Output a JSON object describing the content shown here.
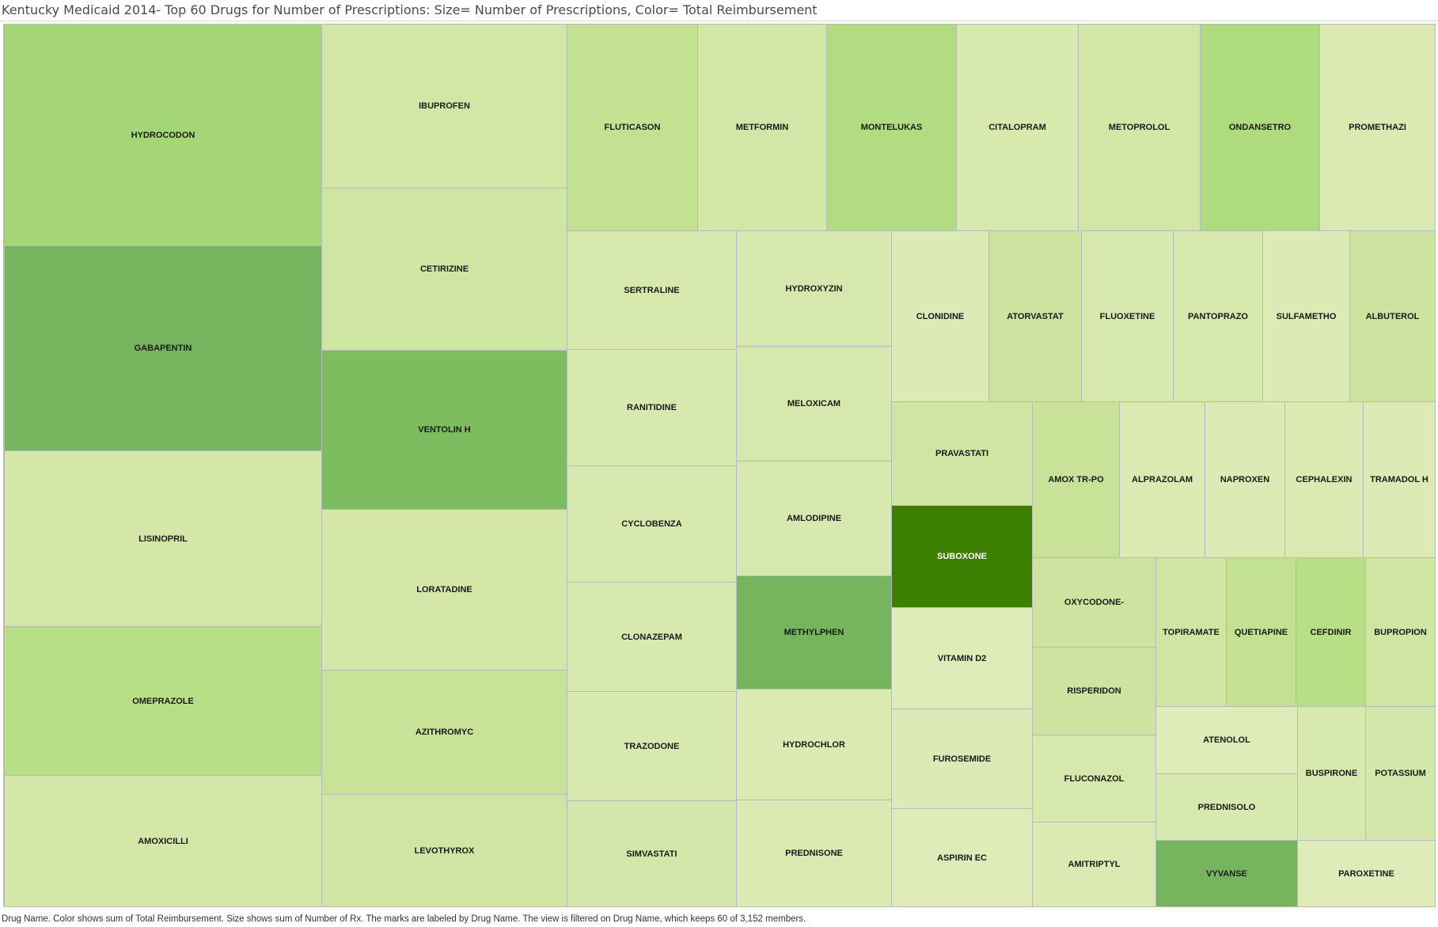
{
  "header": {
    "title": "Kentucky Medicaid 2014- Top 60 Drugs for Number of Prescriptions:  Size= Number of Prescriptions,  Color= Total Reimbursement"
  },
  "footer": {
    "caption": "Drug Name.  Color shows sum of Total Reimbursement.  Size shows sum of Number of Rx.  The marks are labeled by Drug Name. The view is filtered on Drug Name, which keeps 60 of 3,152 members."
  },
  "chart_data": {
    "type": "treemap",
    "title": "Kentucky Medicaid 2014- Top 60 Drugs for Number of Prescriptions:  Size= Number of Prescriptions,  Color= Total Reimbursement",
    "size_measure": "Number of Rx",
    "color_measure": "Total Reimbursement",
    "color_scale": [
      "#dfeab9",
      "#3d7f00"
    ],
    "items": [
      {
        "name": "HYDROCODON",
        "color": "#a4d676"
      },
      {
        "name": "GABAPENTIN",
        "color": "#76b55e"
      },
      {
        "name": "LISINOPRIL",
        "color": "#d4e7a9"
      },
      {
        "name": "OMEPRAZOLE",
        "color": "#b7df86"
      },
      {
        "name": "AMOXICILLI",
        "color": "#d4e7a9"
      },
      {
        "name": "IBUPROFEN",
        "color": "#d2e7a5"
      },
      {
        "name": "CETIRIZINE",
        "color": "#cfe5a2"
      },
      {
        "name": "VENTOLIN H",
        "color": "#7ebc60"
      },
      {
        "name": "LORATADINE",
        "color": "#d4e7a9"
      },
      {
        "name": "AZITHROMYC",
        "color": "#c8e397"
      },
      {
        "name": "LEVOTHYROX",
        "color": "#d0e5a4"
      },
      {
        "name": "FLUTICASON",
        "color": "#c2e191"
      },
      {
        "name": "METFORMIN",
        "color": "#d2e7a7"
      },
      {
        "name": "MONTELUKAS",
        "color": "#b2dc81"
      },
      {
        "name": "CITALOPRAM",
        "color": "#d8e9ae"
      },
      {
        "name": "METOPROLOL",
        "color": "#d2e6a6"
      },
      {
        "name": "ONDANSETRO",
        "color": "#aedb7e"
      },
      {
        "name": "PROMETHAZI",
        "color": "#dbeab3"
      },
      {
        "name": "SERTRALINE",
        "color": "#d6e8ac"
      },
      {
        "name": "RANITIDINE",
        "color": "#d8e9af"
      },
      {
        "name": "CYCLOBENZA",
        "color": "#d8e9af"
      },
      {
        "name": "CLONAZEPAM",
        "color": "#d8e9af"
      },
      {
        "name": "TRAZODONE",
        "color": "#d8e9af"
      },
      {
        "name": "SIMVASTATI",
        "color": "#d4e7aa"
      },
      {
        "name": "HYDROXYZIN",
        "color": "#d6e8ad"
      },
      {
        "name": "MELOXICAM",
        "color": "#d6e8ad"
      },
      {
        "name": "AMLODIPINE",
        "color": "#d8e9af"
      },
      {
        "name": "METHYLPHEN",
        "color": "#76b55e"
      },
      {
        "name": "HYDROCHLOR",
        "color": "#dbeab3"
      },
      {
        "name": "PREDNISONE",
        "color": "#dbeab3"
      },
      {
        "name": "CLONIDINE",
        "color": "#dceab5"
      },
      {
        "name": "ATORVASTAT",
        "color": "#cce4a0"
      },
      {
        "name": "FLUOXETINE",
        "color": "#d8e9af"
      },
      {
        "name": "PANTOPRAZO",
        "color": "#d6e8ac"
      },
      {
        "name": "SULFAMETHO",
        "color": "#dceab5"
      },
      {
        "name": "ALBUTEROL",
        "color": "#cce4a0"
      },
      {
        "name": "PRAVASTATI",
        "color": "#d0e5a4"
      },
      {
        "name": "SUBOXONE",
        "color": "#3d7f00",
        "dark": true
      },
      {
        "name": "VITAMIN D2",
        "color": "#dfebb9"
      },
      {
        "name": "FUROSEMIDE",
        "color": "#dceab5"
      },
      {
        "name": "ASPIRIN EC",
        "color": "#dfebb9"
      },
      {
        "name": "AMOX TR-PO",
        "color": "#c8e397"
      },
      {
        "name": "ALPRAZOLAM",
        "color": "#dbeab3"
      },
      {
        "name": "NAPROXEN",
        "color": "#dceab5"
      },
      {
        "name": "CEPHALEXIN",
        "color": "#dbeab3"
      },
      {
        "name": "TRAMADOL H",
        "color": "#dceab5"
      },
      {
        "name": "OXYCODONE-",
        "color": "#cce4a0"
      },
      {
        "name": "RISPERIDON",
        "color": "#cce4a0"
      },
      {
        "name": "FLUCONAZOL",
        "color": "#d6e8ac"
      },
      {
        "name": "AMITRIPTYL",
        "color": "#dbeab3"
      },
      {
        "name": "TOPIRAMATE",
        "color": "#d0e5a4"
      },
      {
        "name": "QUETIAPINE",
        "color": "#c2e191"
      },
      {
        "name": "CEFDINIR",
        "color": "#b7df86"
      },
      {
        "name": "BUPROPION",
        "color": "#cfe5a2"
      },
      {
        "name": "ATENOLOL",
        "color": "#dfebb9"
      },
      {
        "name": "PREDNISOLO",
        "color": "#d8e9af"
      },
      {
        "name": "BUSPIRONE",
        "color": "#d8e9af"
      },
      {
        "name": "POTASSIUM",
        "color": "#d4e7aa"
      },
      {
        "name": "VYVANSE",
        "color": "#76b55e"
      },
      {
        "name": "PAROXETINE",
        "color": "#dfebb9"
      }
    ]
  }
}
